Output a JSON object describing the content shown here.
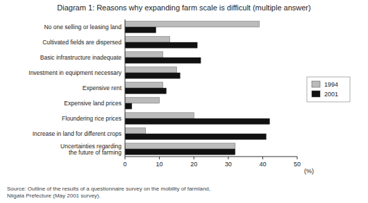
{
  "chart_data": {
    "type": "bar",
    "orientation": "horizontal",
    "title": "Diagram 1: Reasons why expanding farm scale is difficult (multiple answer)",
    "categories": [
      "No one selling or leasing land",
      "Cultivated fields are dispersed",
      "Basic infrastructure inadequate",
      "Investment in equipment necessary",
      "Expensive rent",
      "Expensive land prices",
      "Floundering rice prices",
      "Increase in land for different crops",
      "Uncertainties regarding\nthe future of farming"
    ],
    "series": [
      {
        "name": "1994",
        "color": "#bbbbbb",
        "values": [
          39,
          13,
          11,
          15,
          11,
          10,
          20,
          6,
          32
        ]
      },
      {
        "name": "2001",
        "color": "#111111",
        "values": [
          9,
          21,
          22,
          16,
          12,
          2,
          42,
          41,
          32
        ]
      }
    ],
    "xlabel": "(%)",
    "xlim": [
      0,
      50
    ],
    "xticks": [
      0,
      10,
      20,
      30,
      40,
      50
    ],
    "grid": false,
    "legend": "right",
    "annotations": [
      "Source: Outline of the results of a questionnaire survey on the mobility of farmland,\nNiigata Prefecture (May 2001 survey)."
    ]
  }
}
